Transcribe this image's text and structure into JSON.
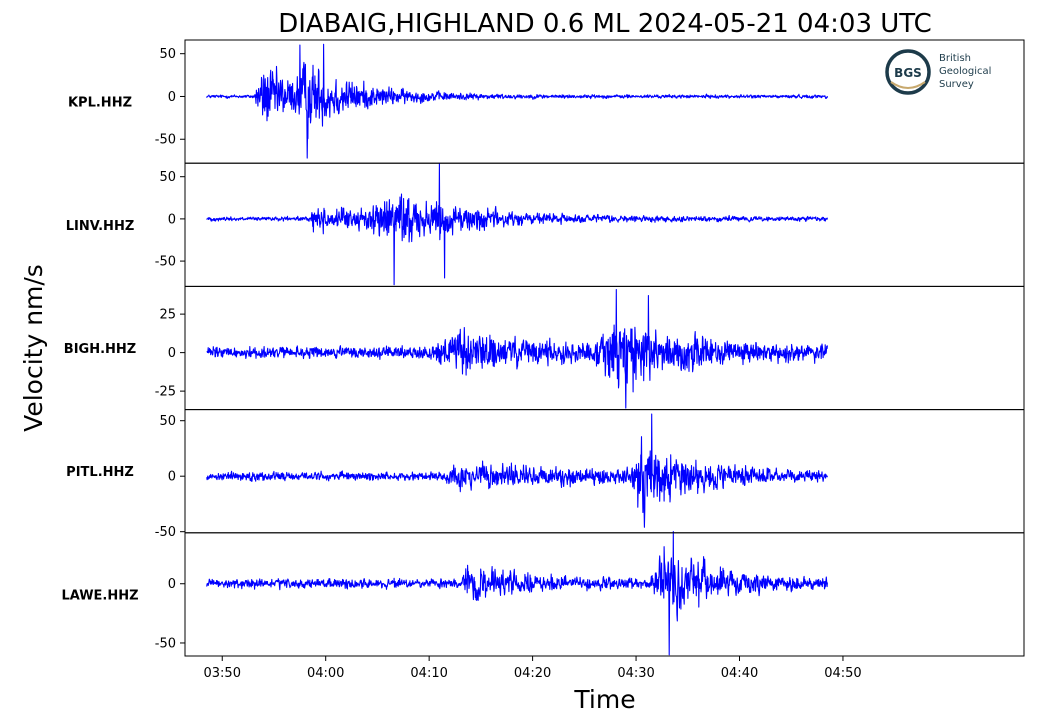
{
  "chart_data": {
    "type": "line",
    "title": "DIABAIG,HIGHLAND 0.6 ML   2024-05-21 04:03 UTC",
    "xlabel": "Time",
    "ylabel": "Velocity nm/s",
    "x_ticks": [
      "03:50",
      "04:00",
      "04:10",
      "04:20",
      "04:30",
      "04:40",
      "04:50"
    ],
    "x_range_min": [
      -13.6,
      67.5
    ],
    "trace_range_min": [
      -11.5,
      48.5
    ],
    "line_color": "#0000ff",
    "grid": false,
    "logo": {
      "abbr": "BGS",
      "lines": [
        "British",
        "Geological",
        "Survey"
      ],
      "ring_color": "#1d3b4a",
      "accent_color": "#c8a96e"
    },
    "panels": [
      {
        "station": "KPL.HHZ",
        "ylim": [
          -78,
          66
        ],
        "yticks": [
          50,
          0,
          -50
        ],
        "ytick_labels": [
          "50",
          "0",
          "-50"
        ],
        "background_amplitude": 2,
        "events": [
          {
            "onset": -7.0,
            "rise": 1.0,
            "peak": 38,
            "decay": 4.5
          },
          {
            "onset": -3.0,
            "rise": 1.0,
            "peak": 28,
            "decay": 5.5
          }
        ],
        "spikes": [
          {
            "t": -1.8,
            "v": -72
          },
          {
            "t": -0.2,
            "v": 61
          },
          {
            "t": -2.5,
            "v": 60
          }
        ]
      },
      {
        "station": "LINV.HHZ",
        "ylim": [
          -80,
          66
        ],
        "yticks": [
          50,
          0,
          -50
        ],
        "ytick_labels": [
          "50",
          "0",
          "-50"
        ],
        "background_amplitude": 2.5,
        "events": [
          {
            "onset": -1.5,
            "rise": 0.2,
            "peak": 14,
            "decay": 9
          },
          {
            "onset": 3.5,
            "rise": 3.5,
            "peak": 28,
            "decay": 7
          }
        ],
        "spikes": [
          {
            "t": 6.6,
            "v": -78
          },
          {
            "t": 11.0,
            "v": 66
          },
          {
            "t": 11.5,
            "v": -70
          }
        ]
      },
      {
        "station": "BIGH.HHZ",
        "ylim": [
          -37,
          43
        ],
        "yticks": [
          25,
          0,
          -25
        ],
        "ytick_labels": [
          "25",
          "0",
          "-25"
        ],
        "background_amplitude": 4,
        "events": [
          {
            "onset": 10.5,
            "rise": 1.5,
            "peak": 12,
            "decay": 10
          },
          {
            "onset": 26.0,
            "rise": 2.0,
            "peak": 20,
            "decay": 6.5
          }
        ],
        "spikes": [
          {
            "t": 28.1,
            "v": 41
          },
          {
            "t": 29.0,
            "v": -36
          },
          {
            "t": 31.2,
            "v": 37
          }
        ]
      },
      {
        "station": "PITL.HHZ",
        "ylim": [
          -51,
          60
        ],
        "yticks": [
          50,
          0,
          -50
        ],
        "ytick_labels": [
          "50",
          "0",
          "-50"
        ],
        "background_amplitude": 4,
        "events": [
          {
            "onset": 11.5,
            "rise": 1.0,
            "peak": 9,
            "decay": 14
          },
          {
            "onset": 29.5,
            "rise": 1.0,
            "peak": 30,
            "decay": 4.5
          }
        ],
        "spikes": [
          {
            "t": 30.8,
            "v": -46
          },
          {
            "t": 31.5,
            "v": 56
          }
        ]
      },
      {
        "station": "LAWE.HHZ",
        "ylim": [
          -61,
          43
        ],
        "yticks": [
          0,
          -50
        ],
        "ytick_labels": [
          "0",
          "-50"
        ],
        "background_amplitude": 4,
        "events": [
          {
            "onset": 13.2,
            "rise": 0.5,
            "peak": 16,
            "decay": 5.0
          },
          {
            "onset": 31.2,
            "rise": 1.5,
            "peak": 27,
            "decay": 5.0
          }
        ],
        "spikes": [
          {
            "t": 33.2,
            "v": -60
          },
          {
            "t": 33.6,
            "v": 44
          }
        ]
      }
    ]
  }
}
